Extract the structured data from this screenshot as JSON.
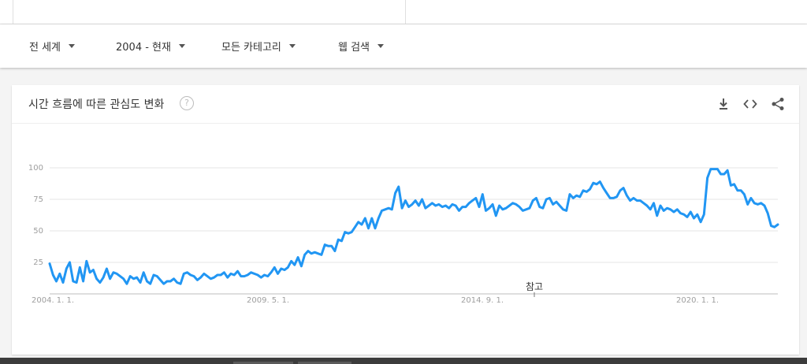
{
  "filters": {
    "region": "전 세계",
    "time_range": "2004 - 현재",
    "category": "모든 카테고리",
    "search_type": "웹 검색"
  },
  "card": {
    "title": "시간 흐름에 따른 관심도 변화",
    "help_glyph": "?",
    "icons": [
      "download-icon",
      "embed-icon",
      "share-icon"
    ]
  },
  "colors": {
    "line": "#2196f3",
    "grid": "#e6e6e6",
    "axis_text": "#9e9e9e"
  },
  "chart_data": {
    "type": "line",
    "title": "",
    "xlabel": "",
    "ylabel": "",
    "ylim": [
      0,
      100
    ],
    "yticks": [
      25,
      50,
      75,
      100
    ],
    "grid": true,
    "x_tick_labels": [
      "2004. 1. 1.",
      "2009. 5. 1.",
      "2014. 9. 1.",
      "2020. 1. 1."
    ],
    "annotations": [
      {
        "label": "참고",
        "x": "2016-04"
      }
    ],
    "series": [
      {
        "values": [
          24,
          15,
          10,
          16,
          9,
          20,
          25,
          10,
          9,
          21,
          10,
          26,
          17,
          19,
          12,
          9,
          13,
          20,
          12,
          17,
          16,
          14,
          12,
          8,
          14,
          12,
          13,
          9,
          17,
          10,
          8,
          15,
          14,
          11,
          8,
          10,
          10,
          12,
          9,
          8,
          16,
          17,
          15,
          14,
          11,
          13,
          16,
          14,
          12,
          13,
          15,
          15,
          17,
          13,
          16,
          15,
          18,
          14,
          14,
          15,
          17,
          16,
          15,
          13,
          15,
          14,
          17,
          21,
          16,
          20,
          19,
          21,
          26,
          23,
          29,
          22,
          31,
          34,
          32,
          33,
          32,
          31,
          39,
          38,
          38,
          34,
          43,
          42,
          49,
          48,
          49,
          53,
          57,
          55,
          60,
          52,
          60,
          52,
          60,
          66,
          67,
          68,
          67,
          80,
          85,
          68,
          74,
          69,
          71,
          74,
          70,
          75,
          68,
          70,
          72,
          70,
          71,
          69,
          70,
          68,
          71,
          70,
          66,
          69,
          69,
          72,
          74,
          76,
          69,
          79,
          66,
          68,
          71,
          62,
          70,
          67,
          68,
          70,
          72,
          71,
          69,
          66,
          67,
          68,
          74,
          76,
          69,
          68,
          75,
          76,
          71,
          73,
          70,
          67,
          66,
          79,
          76,
          78,
          77,
          82,
          81,
          83,
          88,
          87,
          89,
          84,
          80,
          76,
          76,
          77,
          82,
          84,
          78,
          74,
          76,
          74,
          74,
          72,
          70,
          67,
          72,
          62,
          70,
          66,
          68,
          67,
          65,
          67,
          64,
          63,
          61,
          65,
          60,
          63,
          57,
          63,
          92,
          99,
          99,
          99,
          95,
          95,
          98,
          86,
          87,
          82,
          82,
          79,
          71,
          76,
          72,
          71,
          72,
          70,
          64,
          54,
          53,
          55
        ]
      }
    ]
  }
}
